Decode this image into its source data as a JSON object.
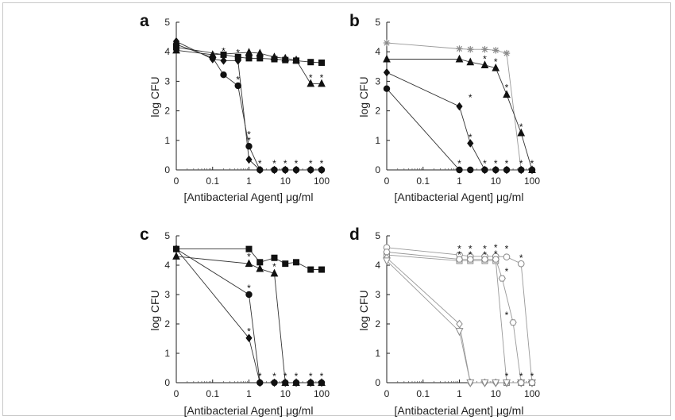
{
  "chart_data": [
    {
      "type": "line",
      "panel": "a",
      "xlabel": "[Antibacterial Agent] μg/ml",
      "ylabel": "log CFU",
      "xscale": "log (0 plotted at 0.01)",
      "x_ticks": [
        "0",
        "0.1",
        "1",
        "10",
        "100"
      ],
      "y_ticks": [
        "0",
        "1",
        "2",
        "3",
        "4",
        "5"
      ],
      "ylim": [
        0,
        5
      ],
      "series": [
        {
          "name": "square",
          "marker": "square",
          "points": [
            [
              0,
              4.15
            ],
            [
              0.2,
              3.9
            ],
            [
              0.5,
              3.82
            ],
            [
              1,
              3.78
            ],
            [
              2,
              3.78
            ],
            [
              5,
              3.75
            ],
            [
              10,
              3.72
            ],
            [
              20,
              3.7
            ],
            [
              50,
              3.65
            ],
            [
              100,
              3.63
            ]
          ]
        },
        {
          "name": "triangle",
          "marker": "triangle",
          "points": [
            [
              0,
              4.05
            ],
            [
              0.1,
              3.9
            ],
            [
              1,
              3.98
            ],
            [
              2,
              3.95
            ],
            [
              5,
              3.82
            ],
            [
              10,
              3.78
            ],
            [
              20,
              3.72
            ],
            [
              50,
              2.92
            ],
            [
              100,
              2.92
            ]
          ]
        },
        {
          "name": "circle",
          "marker": "circle",
          "points": [
            [
              0,
              4.25
            ],
            [
              0.1,
              3.8
            ],
            [
              0.2,
              3.22
            ],
            [
              0.5,
              2.85
            ],
            [
              1,
              0.8
            ],
            [
              2,
              0
            ],
            [
              5,
              0
            ],
            [
              10,
              0
            ],
            [
              20,
              0
            ],
            [
              50,
              0
            ],
            [
              100,
              0
            ]
          ]
        },
        {
          "name": "diamond",
          "marker": "diamond",
          "points": [
            [
              0,
              4.35
            ],
            [
              0.1,
              3.75
            ],
            [
              0.2,
              3.7
            ],
            [
              0.5,
              3.7
            ],
            [
              1,
              0.35
            ],
            [
              2,
              0
            ],
            [
              5,
              0
            ],
            [
              10,
              0
            ],
            [
              20,
              0
            ],
            [
              50,
              0
            ],
            [
              100,
              0
            ]
          ]
        }
      ],
      "annotations": [
        {
          "text": "*",
          "x": 0.2,
          "y": 4.02
        },
        {
          "text": "*",
          "x": 0.5,
          "y": 3.05
        },
        {
          "text": "*",
          "x": 0.5,
          "y": 3.97
        },
        {
          "text": "*",
          "x": 1,
          "y": 1.0
        },
        {
          "text": "*",
          "x": 1,
          "y": 1.2
        },
        {
          "text": "*",
          "x": 2,
          "y": 0.22
        },
        {
          "text": "*",
          "x": 5,
          "y": 0.22
        },
        {
          "text": "*",
          "x": 10,
          "y": 0.22
        },
        {
          "text": "*",
          "x": 20,
          "y": 0.22
        },
        {
          "text": "*",
          "x": 50,
          "y": 0.22
        },
        {
          "text": "*",
          "x": 100,
          "y": 0.22
        },
        {
          "text": "*",
          "x": 50,
          "y": 3.12
        },
        {
          "text": "*",
          "x": 100,
          "y": 3.12
        }
      ]
    },
    {
      "type": "line",
      "panel": "b",
      "xlabel": "[Antibacterial Agent] μg/ml",
      "ylabel": "log CFU",
      "xscale": "log (0 plotted at 0.01)",
      "x_ticks": [
        "0",
        "0.1",
        "1",
        "10",
        "100"
      ],
      "y_ticks": [
        "0",
        "1",
        "2",
        "3",
        "4",
        "5"
      ],
      "ylim": [
        0,
        5
      ],
      "series": [
        {
          "name": "cross",
          "marker": "asterisk",
          "points": [
            [
              0,
              4.3
            ],
            [
              1,
              4.1
            ],
            [
              2,
              4.08
            ],
            [
              5,
              4.08
            ],
            [
              10,
              4.05
            ],
            [
              20,
              3.95
            ],
            [
              50,
              0
            ],
            [
              100,
              0
            ]
          ]
        },
        {
          "name": "triangle",
          "marker": "triangle",
          "points": [
            [
              0,
              3.75
            ],
            [
              1,
              3.75
            ],
            [
              2,
              3.65
            ],
            [
              5,
              3.55
            ],
            [
              10,
              3.45
            ],
            [
              20,
              2.55
            ],
            [
              50,
              1.25
            ],
            [
              100,
              0
            ]
          ]
        },
        {
          "name": "diamond",
          "marker": "diamond",
          "points": [
            [
              0,
              3.3
            ],
            [
              1,
              2.15
            ],
            [
              2,
              0.9
            ],
            [
              5,
              0
            ],
            [
              10,
              0
            ],
            [
              20,
              0
            ],
            [
              50,
              0
            ],
            [
              100,
              0
            ]
          ]
        },
        {
          "name": "circle",
          "marker": "circle",
          "points": [
            [
              0,
              2.75
            ],
            [
              1,
              0
            ],
            [
              2,
              0
            ],
            [
              5,
              0
            ],
            [
              10,
              0
            ],
            [
              20,
              0
            ],
            [
              50,
              0
            ],
            [
              100,
              0
            ]
          ]
        }
      ],
      "annotations": [
        {
          "text": "*",
          "x": 2,
          "y": 2.45
        },
        {
          "text": "*",
          "x": 2,
          "y": 1.1
        },
        {
          "text": "*",
          "x": 5,
          "y": 3.75
        },
        {
          "text": "*",
          "x": 10,
          "y": 3.65
        },
        {
          "text": "*",
          "x": 20,
          "y": 2.78
        },
        {
          "text": "*",
          "x": 50,
          "y": 1.45
        },
        {
          "text": "*",
          "x": 1,
          "y": 0.22
        },
        {
          "text": "*",
          "x": 5,
          "y": 0.22
        },
        {
          "text": "*",
          "x": 10,
          "y": 0.22
        },
        {
          "text": "*",
          "x": 20,
          "y": 0.22
        },
        {
          "text": "*",
          "x": 50,
          "y": 0.22
        },
        {
          "text": "*",
          "x": 100,
          "y": 0.22
        }
      ]
    },
    {
      "type": "line",
      "panel": "c",
      "xlabel": "[Antibacterial Agent] μg/ml",
      "ylabel": "log CFU",
      "xscale": "log (0 plotted at 0.01)",
      "x_ticks": [
        "0",
        "0.1",
        "1",
        "10",
        "100"
      ],
      "y_ticks": [
        "0",
        "1",
        "2",
        "3",
        "4",
        "5"
      ],
      "ylim": [
        0,
        5
      ],
      "series": [
        {
          "name": "square",
          "marker": "square",
          "points": [
            [
              0,
              4.55
            ],
            [
              1,
              4.55
            ],
            [
              2,
              4.1
            ],
            [
              5,
              4.25
            ],
            [
              10,
              4.05
            ],
            [
              20,
              4.1
            ],
            [
              50,
              3.85
            ],
            [
              100,
              3.85
            ]
          ]
        },
        {
          "name": "triangle",
          "marker": "triangle",
          "points": [
            [
              0,
              4.3
            ],
            [
              1,
              4.05
            ],
            [
              2,
              3.88
            ],
            [
              5,
              3.72
            ],
            [
              10,
              0
            ],
            [
              20,
              0
            ],
            [
              50,
              0
            ],
            [
              100,
              0
            ]
          ]
        },
        {
          "name": "circle",
          "marker": "circle",
          "points": [
            [
              0,
              4.55
            ],
            [
              1,
              3.0
            ],
            [
              2,
              0
            ],
            [
              5,
              0
            ],
            [
              10,
              0
            ],
            [
              20,
              0
            ],
            [
              50,
              0
            ],
            [
              100,
              0
            ]
          ]
        },
        {
          "name": "diamond",
          "marker": "diamond",
          "points": [
            [
              0,
              4.55
            ],
            [
              1,
              1.52
            ],
            [
              2,
              0
            ],
            [
              5,
              0
            ],
            [
              10,
              0
            ],
            [
              20,
              0
            ],
            [
              50,
              0
            ],
            [
              100,
              0
            ]
          ]
        }
      ],
      "annotations": [
        {
          "text": "*",
          "x": 1,
          "y": 4.28
        },
        {
          "text": "*",
          "x": 1,
          "y": 3.22
        },
        {
          "text": "*",
          "x": 1,
          "y": 1.75
        },
        {
          "text": "*",
          "x": 5,
          "y": 3.95
        },
        {
          "text": "*",
          "x": 2,
          "y": 0.22
        },
        {
          "text": "*",
          "x": 5,
          "y": 0.22
        },
        {
          "text": "*",
          "x": 10,
          "y": 0.22
        },
        {
          "text": "*",
          "x": 20,
          "y": 0.22
        },
        {
          "text": "*",
          "x": 50,
          "y": 0.22
        },
        {
          "text": "*",
          "x": 100,
          "y": 0.22
        }
      ]
    },
    {
      "type": "line",
      "panel": "d",
      "xlabel": "[Antibacterial Agent] μg/ml",
      "ylabel": "log CFU",
      "xscale": "log (0 plotted at 0.01)",
      "x_ticks": [
        "0",
        "0.1",
        "1",
        "10",
        "100"
      ],
      "y_ticks": [
        "0",
        "1",
        "2",
        "3",
        "4",
        "5"
      ],
      "ylim": [
        0,
        5
      ],
      "series": [
        {
          "name": "open-circle",
          "marker": "open-circle",
          "points": [
            [
              0,
              4.6
            ],
            [
              1,
              4.35
            ],
            [
              2,
              4.3
            ],
            [
              5,
              4.3
            ],
            [
              10,
              4.3
            ],
            [
              20,
              4.28
            ],
            [
              50,
              4.05
            ],
            [
              100,
              0
            ]
          ]
        },
        {
          "name": "open-square",
          "marker": "open-square",
          "points": [
            [
              0,
              4.35
            ],
            [
              1,
              4.15
            ],
            [
              2,
              4.15
            ],
            [
              5,
              4.15
            ],
            [
              10,
              4.15
            ],
            [
              20,
              0
            ],
            [
              50,
              0
            ],
            [
              100,
              0
            ]
          ]
        },
        {
          "name": "open-diamond",
          "marker": "open-diamond",
          "points": [
            [
              0,
              4.25
            ],
            [
              1,
              2.0
            ],
            [
              2,
              0
            ],
            [
              5,
              0
            ],
            [
              10,
              0
            ],
            [
              20,
              0
            ],
            [
              50,
              0
            ],
            [
              100,
              0
            ]
          ]
        },
        {
          "name": "open-triangle-down",
          "marker": "open-triangle-down",
          "points": [
            [
              0,
              4.15
            ],
            [
              1,
              1.75
            ],
            [
              2,
              0
            ],
            [
              5,
              0
            ],
            [
              10,
              0
            ],
            [
              20,
              0
            ],
            [
              50,
              0
            ],
            [
              100,
              0
            ]
          ]
        },
        {
          "name": "open-hexagon",
          "marker": "open-hexagon",
          "points": [
            [
              0,
              4.45
            ],
            [
              1,
              4.2
            ],
            [
              2,
              4.2
            ],
            [
              5,
              4.2
            ],
            [
              10,
              4.2
            ],
            [
              15,
              3.55
            ],
            [
              30,
              2.05
            ],
            [
              50,
              0
            ],
            [
              100,
              0
            ]
          ]
        }
      ],
      "annotations": [
        {
          "text": "*",
          "x": 1,
          "y": 4.55
        },
        {
          "text": "*",
          "x": 1,
          "y": 4.35
        },
        {
          "text": "*",
          "x": 2,
          "y": 4.55
        },
        {
          "text": "*",
          "x": 2,
          "y": 4.35
        },
        {
          "text": "*",
          "x": 5,
          "y": 4.55
        },
        {
          "text": "*",
          "x": 5,
          "y": 4.35
        },
        {
          "text": "*",
          "x": 10,
          "y": 4.6
        },
        {
          "text": "*",
          "x": 10,
          "y": 4.38
        },
        {
          "text": "*",
          "x": 20,
          "y": 4.55
        },
        {
          "text": "*",
          "x": 50,
          "y": 4.25
        },
        {
          "text": "*",
          "x": 20,
          "y": 2.3
        },
        {
          "text": "*",
          "x": 20,
          "y": 3.78
        },
        {
          "text": "*",
          "x": 20,
          "y": 0.22
        },
        {
          "text": "*",
          "x": 50,
          "y": 0.22
        },
        {
          "text": "*",
          "x": 100,
          "y": 0.22
        }
      ]
    }
  ]
}
